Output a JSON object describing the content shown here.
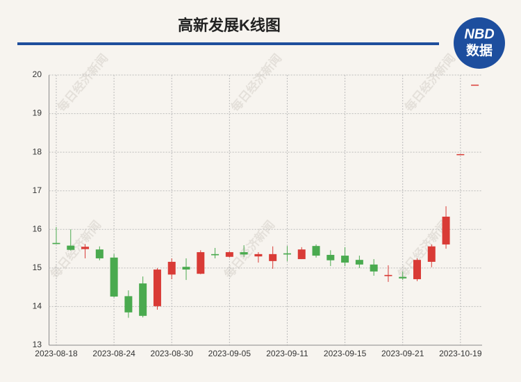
{
  "chart_data": {
    "type": "candlestick",
    "title": "高新发展K线图",
    "logo": {
      "brand": "NBD",
      "subtitle": "数据"
    },
    "watermark": "每日经济新闻",
    "categories": [
      "2023-08-18",
      null,
      null,
      null,
      "2023-08-24",
      null,
      null,
      null,
      "2023-08-30",
      null,
      null,
      null,
      "2023-09-05",
      null,
      null,
      null,
      "2023-09-11",
      null,
      null,
      null,
      "2023-09-15",
      null,
      null,
      null,
      "2023-09-21",
      null,
      null,
      null,
      "2023-10-19",
      null
    ],
    "open": [
      15.65,
      15.58,
      15.49,
      15.48,
      15.27,
      14.27,
      14.6,
      14.01,
      14.83,
      15.03,
      14.85,
      15.36,
      15.29,
      15.41,
      15.3,
      15.18,
      15.38,
      15.23,
      15.57,
      15.34,
      15.32,
      15.21,
      15.09,
      14.79,
      14.77,
      14.71,
      15.16,
      15.61,
      17.95,
      19.75
    ],
    "high": [
      16.06,
      16.0,
      15.62,
      15.56,
      15.36,
      14.42,
      14.78,
      15.0,
      15.25,
      15.25,
      15.46,
      15.52,
      15.43,
      15.59,
      15.41,
      15.56,
      15.57,
      15.54,
      15.61,
      15.46,
      15.54,
      15.32,
      15.23,
      15.07,
      14.91,
      15.25,
      15.61,
      16.6,
      17.95,
      19.75
    ],
    "low": [
      15.62,
      15.45,
      15.25,
      15.2,
      14.24,
      13.71,
      13.72,
      13.92,
      14.71,
      14.69,
      14.84,
      15.25,
      15.27,
      15.29,
      15.14,
      14.98,
      15.18,
      15.23,
      15.27,
      15.05,
      15.05,
      15.0,
      14.8,
      14.64,
      14.69,
      14.66,
      15.02,
      15.5,
      17.95,
      19.75
    ],
    "close": [
      15.62,
      15.47,
      15.55,
      15.25,
      14.26,
      13.85,
      13.76,
      14.96,
      15.16,
      14.96,
      15.41,
      15.33,
      15.41,
      15.35,
      15.36,
      15.36,
      15.35,
      15.48,
      15.32,
      15.2,
      15.14,
      15.09,
      14.91,
      14.82,
      14.73,
      15.21,
      15.56,
      16.33,
      17.95,
      19.75
    ],
    "up_color": "#d93b36",
    "down_color": "#4aaa4f",
    "ylim": [
      13,
      20
    ],
    "yticks": [
      13,
      14,
      15,
      16,
      17,
      18,
      19,
      20
    ],
    "grid": true
  }
}
